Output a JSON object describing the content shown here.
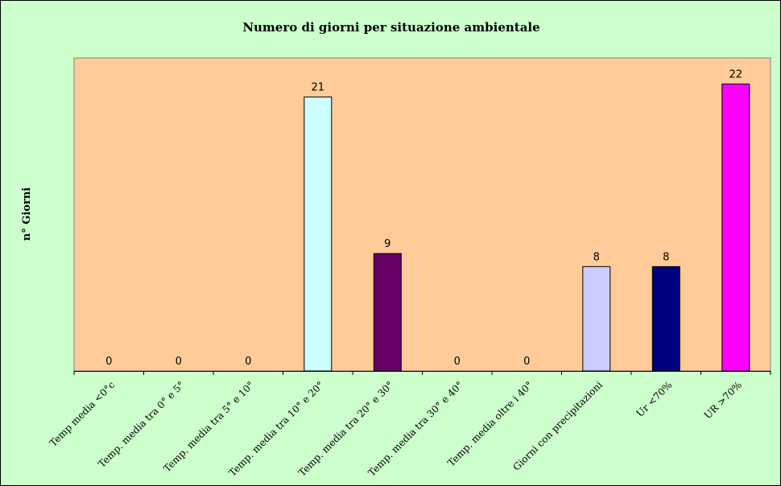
{
  "chart_data": {
    "type": "bar",
    "title": "Numero di giorni per situazione ambientale",
    "xlabel": "",
    "ylabel": "n° Giorni",
    "ylim": [
      0,
      24
    ],
    "grid": false,
    "legend": "none",
    "categories": [
      "Temp media <0°c",
      "Temp. media tra 0° e 5°",
      "Temp. media tra 5° e 10°",
      "Temp. media tra 10° e 20°",
      "Temp. media tra 20° e 30°",
      "Temp. media tra 30° e 40°",
      "Temp. media oltre i 40°",
      "Giorni con precipitazioni",
      "Ur  <70%",
      "UR >70%"
    ],
    "values": [
      0,
      0,
      0,
      21,
      9,
      0,
      0,
      8,
      8,
      22
    ],
    "data_labels": [
      "0",
      "0",
      "0",
      "21",
      "9",
      "0",
      "0",
      "8",
      "8",
      "22"
    ],
    "bar_colors": [
      "#ccffff",
      "#ccffff",
      "#ccffff",
      "#ccffff",
      "#660066",
      "#ccffff",
      "#ccffff",
      "#ccccff",
      "#000080",
      "#ff00ff"
    ]
  },
  "colors": {
    "background": "#ccffcc",
    "plot_area": "#ffcc99",
    "bar_outline": "#000000"
  }
}
